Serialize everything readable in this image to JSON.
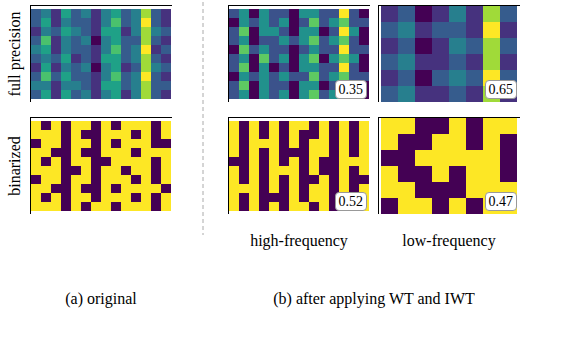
{
  "chart_data": [
    {
      "type": "heatmap",
      "color": "viridis",
      "annotation": null,
      "cells": [
        [
          4,
          5,
          3,
          6,
          4,
          5,
          3,
          5,
          6,
          4,
          5,
          8,
          4,
          3
        ],
        [
          4,
          6,
          3,
          5,
          4,
          4,
          3,
          5,
          7,
          4,
          5,
          9,
          4,
          3
        ],
        [
          3,
          5,
          4,
          6,
          5,
          4,
          3,
          6,
          6,
          3,
          5,
          8,
          5,
          4
        ],
        [
          4,
          7,
          3,
          5,
          4,
          5,
          2,
          5,
          6,
          4,
          4,
          8,
          4,
          3
        ],
        [
          5,
          6,
          3,
          5,
          4,
          4,
          3,
          5,
          7,
          4,
          5,
          9,
          3,
          4
        ],
        [
          4,
          5,
          4,
          6,
          3,
          4,
          3,
          6,
          6,
          4,
          5,
          8,
          4,
          3
        ],
        [
          3,
          6,
          3,
          5,
          4,
          5,
          2,
          5,
          6,
          3,
          4,
          8,
          5,
          4
        ],
        [
          4,
          7,
          4,
          6,
          4,
          4,
          3,
          5,
          7,
          4,
          5,
          9,
          4,
          3
        ],
        [
          5,
          5,
          3,
          5,
          5,
          4,
          3,
          6,
          6,
          4,
          5,
          8,
          4,
          4
        ],
        [
          4,
          6,
          3,
          6,
          4,
          5,
          3,
          5,
          6,
          3,
          5,
          8,
          4,
          3
        ]
      ]
    },
    {
      "type": "heatmap",
      "color": "viridis",
      "annotation": 0.35,
      "cells": [
        [
          4,
          5,
          3,
          5,
          4,
          4,
          3,
          5,
          5,
          4,
          4,
          7,
          4,
          3
        ],
        [
          3,
          5,
          4,
          5,
          4,
          5,
          3,
          4,
          6,
          4,
          5,
          6,
          4,
          4
        ],
        [
          4,
          6,
          3,
          5,
          5,
          4,
          3,
          5,
          5,
          3,
          4,
          7,
          5,
          3
        ],
        [
          4,
          5,
          3,
          4,
          4,
          5,
          4,
          5,
          6,
          4,
          5,
          6,
          4,
          3
        ],
        [
          3,
          6,
          4,
          5,
          4,
          4,
          3,
          4,
          5,
          4,
          4,
          7,
          4,
          4
        ],
        [
          4,
          5,
          3,
          6,
          4,
          5,
          3,
          5,
          6,
          3,
          5,
          6,
          5,
          3
        ],
        [
          4,
          6,
          3,
          5,
          3,
          4,
          3,
          5,
          5,
          4,
          4,
          7,
          4,
          3
        ],
        [
          3,
          5,
          4,
          5,
          4,
          5,
          4,
          4,
          6,
          4,
          5,
          6,
          4,
          4
        ],
        [
          4,
          6,
          3,
          5,
          4,
          4,
          3,
          5,
          5,
          3,
          4,
          7,
          4,
          3
        ],
        [
          4,
          5,
          3,
          5,
          4,
          5,
          3,
          5,
          6,
          4,
          5,
          6,
          5,
          3
        ]
      ]
    },
    {
      "type": "heatmap",
      "color": "viridis",
      "annotation": 0.65,
      "cells": [
        [
          3,
          4,
          2,
          3,
          5,
          3,
          8,
          4
        ],
        [
          4,
          5,
          3,
          4,
          4,
          3,
          9,
          3
        ],
        [
          3,
          4,
          2,
          3,
          5,
          4,
          8,
          4
        ],
        [
          4,
          5,
          3,
          3,
          4,
          3,
          8,
          3
        ],
        [
          3,
          4,
          2,
          4,
          5,
          4,
          9,
          4
        ],
        [
          4,
          5,
          3,
          3,
          4,
          3,
          8,
          3
        ]
      ]
    },
    {
      "type": "heatmap",
      "color": "viridis",
      "annotation": null,
      "cells": [
        [
          1,
          0,
          1,
          0,
          1,
          1,
          0,
          1,
          0,
          1,
          1,
          1,
          0,
          1
        ],
        [
          1,
          1,
          1,
          0,
          1,
          0,
          0,
          1,
          1,
          1,
          0,
          1,
          0,
          1
        ],
        [
          0,
          1,
          1,
          0,
          1,
          1,
          0,
          1,
          0,
          1,
          1,
          1,
          0,
          0
        ],
        [
          1,
          1,
          0,
          0,
          1,
          0,
          0,
          1,
          1,
          1,
          0,
          1,
          1,
          1
        ],
        [
          1,
          0,
          1,
          0,
          1,
          1,
          0,
          0,
          1,
          1,
          1,
          1,
          0,
          1
        ],
        [
          1,
          1,
          1,
          0,
          0,
          1,
          0,
          1,
          1,
          0,
          1,
          1,
          0,
          1
        ],
        [
          0,
          1,
          1,
          0,
          1,
          1,
          0,
          1,
          1,
          1,
          0,
          1,
          0,
          1
        ],
        [
          1,
          1,
          0,
          0,
          1,
          0,
          0,
          1,
          0,
          1,
          1,
          1,
          1,
          0
        ],
        [
          1,
          0,
          1,
          0,
          1,
          1,
          0,
          1,
          1,
          1,
          0,
          1,
          0,
          1
        ],
        [
          1,
          1,
          1,
          0,
          1,
          0,
          1,
          1,
          0,
          1,
          1,
          1,
          0,
          1
        ]
      ]
    },
    {
      "type": "heatmap",
      "color": "viridis",
      "annotation": 0.52,
      "cells": [
        [
          1,
          0,
          1,
          0,
          1,
          0,
          1,
          1,
          0,
          1,
          0,
          1,
          0,
          1
        ],
        [
          1,
          0,
          1,
          0,
          1,
          0,
          1,
          0,
          0,
          1,
          0,
          1,
          0,
          1
        ],
        [
          1,
          0,
          1,
          1,
          1,
          0,
          1,
          0,
          1,
          1,
          0,
          1,
          0,
          1
        ],
        [
          1,
          0,
          1,
          0,
          1,
          0,
          0,
          0,
          1,
          1,
          0,
          1,
          0,
          1
        ],
        [
          0,
          0,
          1,
          0,
          1,
          0,
          1,
          0,
          1,
          0,
          0,
          1,
          1,
          1
        ],
        [
          1,
          0,
          1,
          0,
          1,
          1,
          1,
          0,
          1,
          0,
          0,
          1,
          0,
          1
        ],
        [
          1,
          0,
          1,
          0,
          1,
          0,
          1,
          0,
          0,
          1,
          0,
          1,
          0,
          0
        ],
        [
          1,
          1,
          1,
          0,
          1,
          0,
          1,
          0,
          1,
          1,
          0,
          1,
          0,
          1
        ],
        [
          1,
          0,
          1,
          0,
          0,
          0,
          1,
          0,
          1,
          1,
          0,
          1,
          0,
          1
        ],
        [
          1,
          0,
          1,
          0,
          1,
          0,
          1,
          1,
          0,
          1,
          0,
          1,
          0,
          1
        ]
      ]
    },
    {
      "type": "heatmap",
      "color": "viridis",
      "annotation": 0.47,
      "cells": [
        [
          1,
          1,
          0,
          0,
          1,
          0,
          1,
          1
        ],
        [
          1,
          0,
          0,
          1,
          1,
          0,
          1,
          0
        ],
        [
          0,
          0,
          1,
          1,
          1,
          1,
          1,
          0
        ],
        [
          1,
          0,
          0,
          1,
          0,
          1,
          1,
          0
        ],
        [
          1,
          1,
          0,
          0,
          0,
          1,
          1,
          1
        ],
        [
          0,
          1,
          1,
          0,
          1,
          0,
          1,
          1
        ]
      ]
    }
  ],
  "figure": {
    "row_labels": [
      "full precision",
      "binarized"
    ],
    "column_labels": [
      "high-frequency",
      "low-frequency"
    ],
    "captions": [
      "(a) original",
      "(b) after applying WT and IWT"
    ]
  }
}
